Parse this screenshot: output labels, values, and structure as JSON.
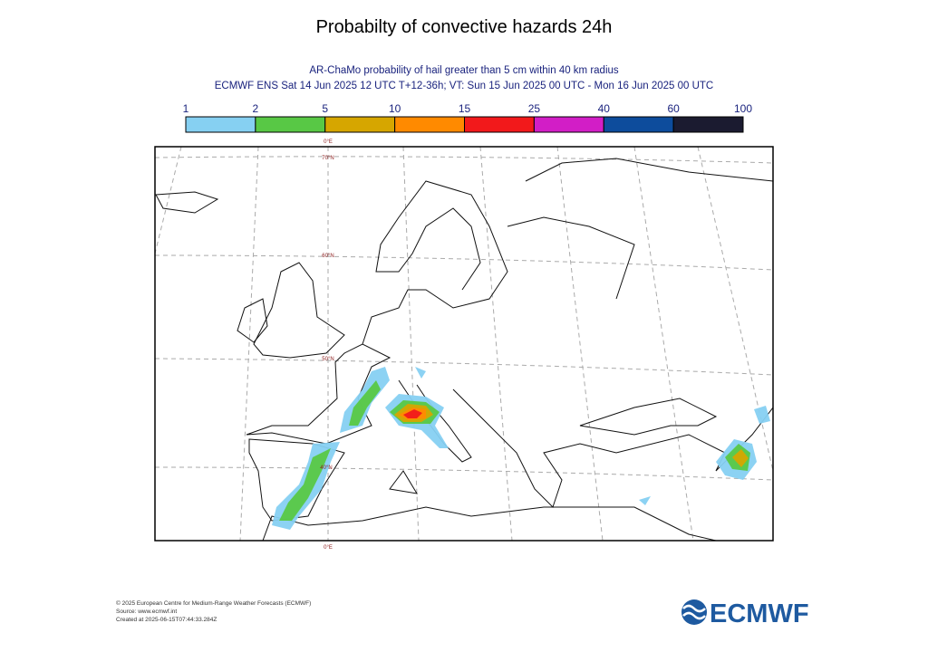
{
  "title": "Probabilty of convective hazards 24h",
  "subtitle": [
    "AR-ChaMo probability of hail greater than 5 cm within 40 km radius",
    "ECMWF ENS Sat 14 Jun 2025 12 UTC T+12-36h; VT: Sun 15 Jun 2025 00 UTC - Mon 16 Jun 2025 00 UTC"
  ],
  "legend": {
    "bounds": [
      1,
      2,
      5,
      10,
      15,
      25,
      40,
      60,
      100
    ],
    "colors": [
      "#86d0f2",
      "#58c845",
      "#d6a600",
      "#ff8a00",
      "#f2191b",
      "#d21ec6",
      "#0d4c9c",
      "#1b1b30"
    ]
  },
  "map_labels": {
    "top_lon": "0°E",
    "bottom_lon": "0°E",
    "lats": [
      "70°N",
      "60°N",
      "50°N",
      "40°N"
    ]
  },
  "footer": [
    "© 2025 European Centre for Medium-Range Weather Forecasts (ECMWF)",
    "Source: www.ecmwf.int",
    "Created at 2025-06-15T07:44:33.284Z"
  ],
  "logo": "ECMWF"
}
